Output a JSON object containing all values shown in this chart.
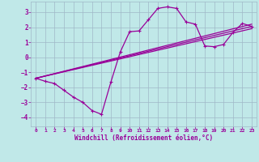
{
  "xlabel": "Windchill (Refroidissement éolien,°C)",
  "bg_color": "#c0e8e8",
  "grid_color": "#a0b8c8",
  "line_color": "#990099",
  "xlim": [
    -0.5,
    23.5
  ],
  "ylim": [
    -4.6,
    3.7
  ],
  "xticks": [
    0,
    1,
    2,
    3,
    4,
    5,
    6,
    7,
    8,
    9,
    10,
    11,
    12,
    13,
    14,
    15,
    16,
    17,
    18,
    19,
    20,
    21,
    22,
    23
  ],
  "yticks": [
    -4,
    -3,
    -2,
    -1,
    0,
    1,
    2,
    3
  ],
  "series": [
    [
      0,
      -1.4
    ],
    [
      1,
      -1.6
    ],
    [
      2,
      -1.75
    ],
    [
      3,
      -2.2
    ],
    [
      4,
      -2.65
    ],
    [
      5,
      -3.0
    ],
    [
      6,
      -3.55
    ],
    [
      7,
      -3.8
    ],
    [
      8,
      -1.65
    ],
    [
      9,
      0.35
    ],
    [
      10,
      1.7
    ],
    [
      11,
      1.75
    ],
    [
      12,
      2.5
    ],
    [
      13,
      3.25
    ],
    [
      14,
      3.35
    ],
    [
      15,
      3.25
    ],
    [
      16,
      2.35
    ],
    [
      17,
      2.2
    ],
    [
      18,
      0.75
    ],
    [
      19,
      0.7
    ],
    [
      20,
      0.85
    ],
    [
      21,
      1.65
    ],
    [
      22,
      2.25
    ],
    [
      23,
      2.05
    ]
  ],
  "line2": [
    [
      0,
      -1.4
    ],
    [
      23,
      2.05
    ]
  ],
  "line3": [
    [
      0,
      -1.4
    ],
    [
      23,
      2.05
    ]
  ],
  "line4": [
    [
      0,
      -1.4
    ],
    [
      23,
      2.05
    ]
  ]
}
